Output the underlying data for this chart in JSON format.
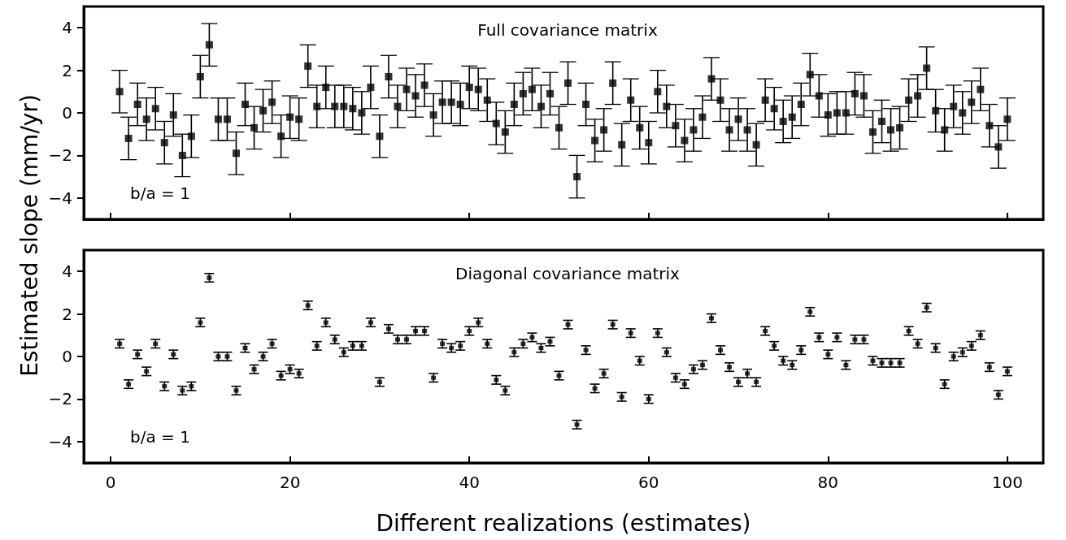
{
  "chart_data": [
    {
      "type": "scatter",
      "title": "Full covariance matrix",
      "ylabel": "Estimated slope (mm/yr)",
      "annotations": [
        "b/a = 1"
      ],
      "marker": "square",
      "color": "#000000",
      "tick_labels": "y",
      "xlim": [
        -3,
        104
      ],
      "xticks": [
        0,
        20,
        40,
        60,
        80,
        100
      ],
      "ylim": [
        -5,
        5
      ],
      "yticks": [
        -4,
        -2,
        0,
        2,
        4
      ],
      "x": [
        1,
        2,
        3,
        4,
        5,
        6,
        7,
        8,
        9,
        10,
        11,
        12,
        13,
        14,
        15,
        16,
        17,
        18,
        19,
        20,
        21,
        22,
        23,
        24,
        25,
        26,
        27,
        28,
        29,
        30,
        31,
        32,
        33,
        34,
        35,
        36,
        37,
        38,
        39,
        40,
        41,
        42,
        43,
        44,
        45,
        46,
        47,
        48,
        49,
        50,
        51,
        52,
        53,
        54,
        55,
        56,
        57,
        58,
        59,
        60,
        61,
        62,
        63,
        64,
        65,
        66,
        67,
        68,
        69,
        70,
        71,
        72,
        73,
        74,
        75,
        76,
        77,
        78,
        79,
        80,
        81,
        82,
        83,
        84,
        85,
        86,
        87,
        88,
        89,
        90,
        91,
        92,
        93,
        94,
        95,
        96,
        97,
        98,
        99,
        100
      ],
      "values": [
        1.0,
        -1.2,
        0.4,
        -0.3,
        0.2,
        -1.4,
        -0.1,
        -2.0,
        -1.1,
        1.7,
        3.2,
        -0.3,
        -0.3,
        -1.9,
        0.4,
        -0.7,
        0.1,
        0.5,
        -1.1,
        -0.2,
        -0.3,
        2.2,
        0.3,
        1.2,
        0.3,
        0.3,
        0.2,
        0.0,
        1.2,
        -1.1,
        1.7,
        0.3,
        1.1,
        0.8,
        1.3,
        -0.1,
        0.5,
        0.5,
        0.4,
        1.2,
        1.1,
        0.6,
        -0.5,
        -0.9,
        0.4,
        0.9,
        1.1,
        0.3,
        0.9,
        -0.7,
        1.4,
        -3.0,
        0.4,
        -1.3,
        -0.8,
        1.4,
        -1.5,
        0.6,
        -0.7,
        -1.4,
        1.0,
        0.3,
        -0.6,
        -1.3,
        -0.8,
        -0.2,
        1.6,
        0.6,
        -0.8,
        -0.3,
        -0.8,
        -1.5,
        0.6,
        0.2,
        -0.4,
        -0.2,
        0.4,
        1.8,
        0.8,
        -0.1,
        0.0,
        0.0,
        0.9,
        0.8,
        -0.9,
        -0.4,
        -0.8,
        -0.7,
        0.6,
        0.8,
        2.1,
        0.1,
        -0.8,
        0.3,
        0.0,
        0.5,
        1.1,
        -0.6,
        -1.6,
        -0.3
      ],
      "errors": [
        1.0,
        1.0,
        1.0,
        1.0,
        1.0,
        1.0,
        1.0,
        1.0,
        1.0,
        1.0,
        1.0,
        1.0,
        1.0,
        1.0,
        1.0,
        1.0,
        1.0,
        1.0,
        1.0,
        1.0,
        1.0,
        1.0,
        1.0,
        1.0,
        1.0,
        1.0,
        1.0,
        1.0,
        1.0,
        1.0,
        1.0,
        1.0,
        1.0,
        1.0,
        1.0,
        1.0,
        1.0,
        1.0,
        1.0,
        1.0,
        1.0,
        1.0,
        1.0,
        1.0,
        1.0,
        1.0,
        1.0,
        1.0,
        1.0,
        1.0,
        1.0,
        1.0,
        1.0,
        1.0,
        1.0,
        1.0,
        1.0,
        1.0,
        1.0,
        1.0,
        1.0,
        1.0,
        1.0,
        1.0,
        1.0,
        1.0,
        1.0,
        1.0,
        1.0,
        1.0,
        1.0,
        1.0,
        1.0,
        1.0,
        1.0,
        1.0,
        1.0,
        1.0,
        1.0,
        1.0,
        1.0,
        1.0,
        1.0,
        1.0,
        1.0,
        1.0,
        1.0,
        1.0,
        1.0,
        1.0,
        1.0,
        1.0,
        1.0,
        1.0,
        1.0,
        1.0,
        1.0,
        1.0,
        1.0,
        1.0
      ]
    },
    {
      "type": "scatter",
      "title": "Diagonal covariance matrix",
      "xlabel": "Different realizations (estimates)",
      "annotations": [
        "b/a = 1"
      ],
      "marker": "square",
      "color": "#000000",
      "xlim": [
        -3,
        104
      ],
      "xticks": [
        0,
        20,
        40,
        60,
        80,
        100
      ],
      "ylim": [
        -5,
        5
      ],
      "yticks": [
        -4,
        -2,
        0,
        2,
        4
      ],
      "x": [
        1,
        2,
        3,
        4,
        5,
        6,
        7,
        8,
        9,
        10,
        11,
        12,
        13,
        14,
        15,
        16,
        17,
        18,
        19,
        20,
        21,
        22,
        23,
        24,
        25,
        26,
        27,
        28,
        29,
        30,
        31,
        32,
        33,
        34,
        35,
        36,
        37,
        38,
        39,
        40,
        41,
        42,
        43,
        44,
        45,
        46,
        47,
        48,
        49,
        50,
        51,
        52,
        53,
        54,
        55,
        56,
        57,
        58,
        59,
        60,
        61,
        62,
        63,
        64,
        65,
        66,
        67,
        68,
        69,
        70,
        71,
        72,
        73,
        74,
        75,
        76,
        77,
        78,
        79,
        80,
        81,
        82,
        83,
        84,
        85,
        86,
        87,
        88,
        89,
        90,
        91,
        92,
        93,
        94,
        95,
        96,
        97,
        98,
        99,
        100
      ],
      "values": [
        0.6,
        -1.3,
        0.1,
        -0.7,
        0.6,
        -1.4,
        0.1,
        -1.6,
        -1.4,
        1.6,
        3.7,
        0.0,
        0.0,
        -1.6,
        0.4,
        -0.6,
        0.0,
        0.6,
        -0.9,
        -0.6,
        -0.8,
        2.4,
        0.5,
        1.6,
        0.8,
        0.2,
        0.5,
        0.5,
        1.6,
        -1.2,
        1.3,
        0.8,
        0.8,
        1.2,
        1.2,
        -1.0,
        0.6,
        0.4,
        0.5,
        1.2,
        1.6,
        0.6,
        -1.1,
        -1.6,
        0.2,
        0.6,
        0.9,
        0.4,
        0.7,
        -0.9,
        1.5,
        -3.2,
        0.3,
        -1.5,
        -0.8,
        1.5,
        -1.9,
        1.1,
        -0.2,
        -2.0,
        1.1,
        0.2,
        -1.0,
        -1.3,
        -0.6,
        -0.4,
        1.8,
        0.3,
        -0.5,
        -1.2,
        -0.8,
        -1.2,
        1.2,
        0.5,
        -0.2,
        -0.4,
        0.3,
        2.1,
        0.9,
        0.1,
        0.9,
        -0.4,
        0.8,
        0.8,
        -0.2,
        -0.3,
        -0.3,
        -0.3,
        1.2,
        0.6,
        2.3,
        0.4,
        -1.3,
        0.0,
        0.2,
        0.5,
        1.0,
        -0.5,
        -1.8,
        -0.7
      ],
      "errors": [
        0.2,
        0.2,
        0.2,
        0.2,
        0.2,
        0.2,
        0.2,
        0.2,
        0.2,
        0.2,
        0.2,
        0.2,
        0.2,
        0.2,
        0.2,
        0.2,
        0.2,
        0.2,
        0.2,
        0.2,
        0.2,
        0.2,
        0.2,
        0.2,
        0.2,
        0.2,
        0.2,
        0.2,
        0.2,
        0.2,
        0.2,
        0.2,
        0.2,
        0.2,
        0.2,
        0.2,
        0.2,
        0.2,
        0.2,
        0.2,
        0.2,
        0.2,
        0.2,
        0.2,
        0.2,
        0.2,
        0.2,
        0.2,
        0.2,
        0.2,
        0.2,
        0.2,
        0.2,
        0.2,
        0.2,
        0.2,
        0.2,
        0.2,
        0.2,
        0.2,
        0.2,
        0.2,
        0.2,
        0.2,
        0.2,
        0.2,
        0.2,
        0.2,
        0.2,
        0.2,
        0.2,
        0.2,
        0.2,
        0.2,
        0.2,
        0.2,
        0.2,
        0.2,
        0.2,
        0.2,
        0.2,
        0.2,
        0.2,
        0.2,
        0.2,
        0.2,
        0.2,
        0.2,
        0.2,
        0.2,
        0.2,
        0.2,
        0.2,
        0.2,
        0.2,
        0.2,
        0.2,
        0.2,
        0.2,
        0.2
      ]
    }
  ]
}
